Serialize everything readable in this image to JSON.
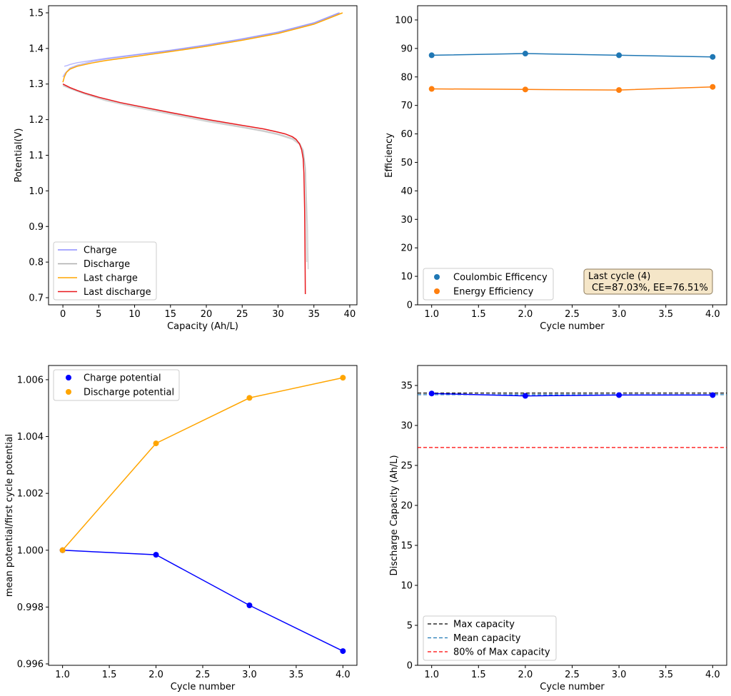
{
  "chart_data": [
    {
      "type": "line",
      "xlabel": "Capacity (Ah/L)",
      "ylabel": "Potential(V)",
      "xlim": [
        -2,
        41
      ],
      "ylim": [
        0.68,
        1.52
      ],
      "xticks": [
        0,
        5,
        10,
        15,
        20,
        25,
        30,
        35,
        40
      ],
      "yticks": [
        0.7,
        0.8,
        0.9,
        1.0,
        1.1,
        1.2,
        1.3,
        1.4,
        1.5
      ],
      "ytick_labels": [
        "0.7",
        "0.8",
        "0.9",
        "1.0",
        "1.1",
        "1.2",
        "1.3",
        "1.4",
        "1.5"
      ],
      "grid": false,
      "legend_position": "lower-left",
      "series": [
        {
          "name": "Charge",
          "color": "#7b7bff",
          "opacity": 0.55,
          "points": [
            [
              0.2,
              1.35
            ],
            [
              0.6,
              1.352
            ],
            [
              1,
              1.355
            ],
            [
              2,
              1.36
            ],
            [
              4,
              1.366
            ],
            [
              6,
              1.372
            ],
            [
              10,
              1.382
            ],
            [
              15,
              1.395
            ],
            [
              20,
              1.41
            ],
            [
              25,
              1.427
            ],
            [
              30,
              1.446
            ],
            [
              35,
              1.472
            ],
            [
              38.5,
              1.5
            ]
          ]
        },
        {
          "name": "Charge",
          "color": "#7b7bff",
          "opacity": 0.55,
          "points": [
            [
              0,
              1.32
            ],
            [
              0.3,
              1.33
            ],
            [
              1,
              1.345
            ],
            [
              2,
              1.353
            ],
            [
              4,
              1.363
            ],
            [
              6,
              1.37
            ],
            [
              10,
              1.381
            ],
            [
              15,
              1.394
            ],
            [
              20,
              1.409
            ],
            [
              25,
              1.426
            ],
            [
              30,
              1.445
            ],
            [
              35,
              1.471
            ],
            [
              38.6,
              1.5
            ]
          ]
        },
        {
          "name": "Discharge",
          "color": "#a0a0a0",
          "opacity": 0.45,
          "points": [
            [
              0,
              1.295
            ],
            [
              1,
              1.287
            ],
            [
              3,
              1.272
            ],
            [
              6,
              1.253
            ],
            [
              10,
              1.235
            ],
            [
              15,
              1.215
            ],
            [
              20,
              1.195
            ],
            [
              25,
              1.178
            ],
            [
              28,
              1.167
            ],
            [
              30,
              1.158
            ],
            [
              32,
              1.145
            ],
            [
              33,
              1.13
            ],
            [
              33.5,
              1.11
            ],
            [
              33.8,
              1.06
            ],
            [
              34.1,
              0.9
            ],
            [
              34.2,
              0.78
            ]
          ]
        },
        {
          "name": "Discharge",
          "color": "#a0a0a0",
          "opacity": 0.45,
          "points": [
            [
              0,
              1.298
            ],
            [
              1,
              1.289
            ],
            [
              3,
              1.274
            ],
            [
              6,
              1.256
            ],
            [
              10,
              1.238
            ],
            [
              15,
              1.218
            ],
            [
              20,
              1.198
            ],
            [
              25,
              1.18
            ],
            [
              28,
              1.169
            ],
            [
              30,
              1.16
            ],
            [
              32,
              1.148
            ],
            [
              33,
              1.134
            ],
            [
              33.5,
              1.115
            ],
            [
              33.8,
              1.065
            ],
            [
              33.9,
              0.95
            ],
            [
              34.0,
              0.8
            ]
          ]
        },
        {
          "name": "Last charge",
          "color": "#ffa500",
          "opacity": 1,
          "points": [
            [
              0,
              1.305
            ],
            [
              0.2,
              1.32
            ],
            [
              0.5,
              1.333
            ],
            [
              1,
              1.342
            ],
            [
              2,
              1.35
            ],
            [
              4,
              1.359
            ],
            [
              6,
              1.366
            ],
            [
              10,
              1.377
            ],
            [
              15,
              1.391
            ],
            [
              20,
              1.406
            ],
            [
              25,
              1.423
            ],
            [
              30,
              1.442
            ],
            [
              35,
              1.468
            ],
            [
              39,
              1.5
            ]
          ]
        },
        {
          "name": "Last discharge",
          "color": "#e8191d",
          "opacity": 1,
          "points": [
            [
              0,
              1.3
            ],
            [
              0.5,
              1.295
            ],
            [
              1,
              1.29
            ],
            [
              2,
              1.282
            ],
            [
              3,
              1.275
            ],
            [
              5,
              1.263
            ],
            [
              8,
              1.248
            ],
            [
              10,
              1.24
            ],
            [
              15,
              1.22
            ],
            [
              20,
              1.201
            ],
            [
              25,
              1.184
            ],
            [
              28,
              1.174
            ],
            [
              30,
              1.165
            ],
            [
              31,
              1.16
            ],
            [
              32,
              1.152
            ],
            [
              32.5,
              1.145
            ],
            [
              33,
              1.132
            ],
            [
              33.3,
              1.115
            ],
            [
              33.5,
              1.09
            ],
            [
              33.6,
              1.05
            ],
            [
              33.7,
              0.95
            ],
            [
              33.75,
              0.85
            ],
            [
              33.8,
              0.71
            ]
          ]
        }
      ]
    },
    {
      "type": "scatter",
      "xlabel": "Cycle number",
      "ylabel": "Efficiency",
      "x": [
        1.0,
        2.0,
        3.0,
        4.0
      ],
      "xlim": [
        0.85,
        4.15
      ],
      "ylim": [
        0,
        105
      ],
      "xticks": [
        1.0,
        1.5,
        2.0,
        2.5,
        3.0,
        3.5,
        4.0
      ],
      "xtick_labels": [
        "1.0",
        "1.5",
        "2.0",
        "2.5",
        "3.0",
        "3.5",
        "4.0"
      ],
      "yticks": [
        0,
        10,
        20,
        30,
        40,
        50,
        60,
        70,
        80,
        90,
        100
      ],
      "grid": false,
      "legend_position": "lower-left",
      "series": [
        {
          "name": "Coulombic Efficency",
          "color": "#1f77b4",
          "values": [
            87.6,
            88.2,
            87.6,
            87.03
          ]
        },
        {
          "name": "Energy Efficiency",
          "color": "#ff7f0e",
          "values": [
            75.8,
            75.6,
            75.4,
            76.51
          ]
        }
      ],
      "annotation": {
        "line1": "Last cycle (4)",
        "line2": "CE=87.03%, EE=76.51%",
        "bg": "#f5e6c8",
        "border": "#8c7a5b"
      }
    },
    {
      "type": "scatter",
      "xlabel": "Cycle number",
      "ylabel": "mean potential/first cycle potential",
      "x": [
        1.0,
        2.0,
        3.0,
        4.0
      ],
      "xlim": [
        0.85,
        4.15
      ],
      "ylim": [
        0.99595,
        1.0065
      ],
      "xticks": [
        1.0,
        1.5,
        2.0,
        2.5,
        3.0,
        3.5,
        4.0
      ],
      "xtick_labels": [
        "1.0",
        "1.5",
        "2.0",
        "2.5",
        "3.0",
        "3.5",
        "4.0"
      ],
      "yticks": [
        0.996,
        0.998,
        1.0,
        1.002,
        1.004,
        1.006
      ],
      "ytick_labels": [
        "0.996",
        "0.998",
        "1.000",
        "1.002",
        "1.004",
        "1.006"
      ],
      "grid": false,
      "legend_position": "upper-left",
      "series": [
        {
          "name": "Charge potential",
          "color": "#0000ff",
          "values": [
            1.0,
            0.99984,
            0.99806,
            0.99645
          ]
        },
        {
          "name": "Discharge potential",
          "color": "#ffa500",
          "values": [
            1.0,
            1.00376,
            1.00536,
            1.00607
          ]
        }
      ]
    },
    {
      "type": "line",
      "xlabel": "Cycle number",
      "ylabel": "Discharge Capacity (Ah/L)",
      "x": [
        1.0,
        2.0,
        3.0,
        4.0
      ],
      "xlim": [
        0.85,
        4.15
      ],
      "ylim": [
        0,
        37.5
      ],
      "xticks": [
        1.0,
        1.5,
        2.0,
        2.5,
        3.0,
        3.5,
        4.0
      ],
      "xtick_labels": [
        "1.0",
        "1.5",
        "2.0",
        "2.5",
        "3.0",
        "3.5",
        "4.0"
      ],
      "yticks": [
        0,
        5,
        10,
        15,
        20,
        25,
        30,
        35
      ],
      "grid": false,
      "legend_position": "lower-left",
      "series": [
        {
          "color": "#0000ff",
          "values": [
            34.0,
            33.7,
            33.8,
            33.8
          ]
        }
      ],
      "hlines": [
        {
          "name": "Max capacity",
          "color": "#000000",
          "value": 34.05
        },
        {
          "name": "Mean capacity",
          "color": "#1f77b4",
          "value": 33.85
        },
        {
          "name": "80% of Max capacity",
          "color": "#ff0000",
          "value": 27.24
        }
      ]
    }
  ]
}
